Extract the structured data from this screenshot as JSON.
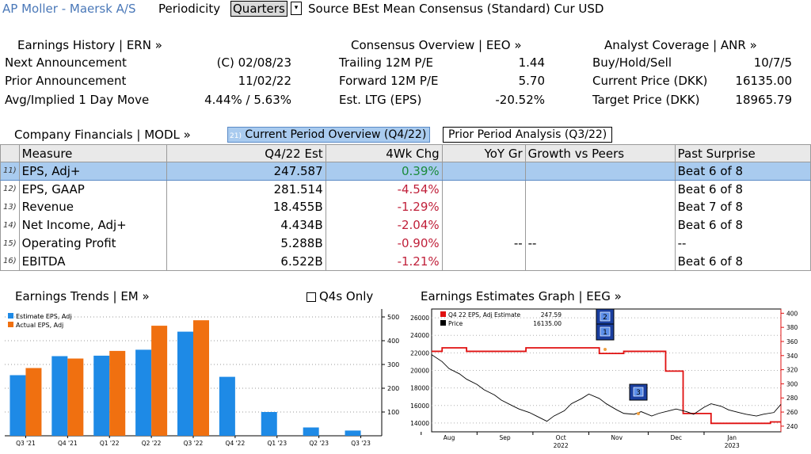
{
  "header": {
    "company": "AP Moller - Maersk A/S",
    "periodicity_label": "Periodicity",
    "periodicity_value": "Quarters",
    "dropdown_arrow": "▾",
    "source_text": "Source BEst Mean Consensus (Standard) Cur USD"
  },
  "earnings_history": {
    "title": "Earnings History | ERN »",
    "rows": [
      {
        "label": "Next Announcement",
        "value": "(C)  02/08/23"
      },
      {
        "label": "Prior Announcement",
        "value": "11/02/22"
      },
      {
        "label": "Avg/Implied 1 Day Move",
        "value": "4.44% / 5.63%"
      }
    ]
  },
  "consensus": {
    "title": "Consensus Overview | EEO »",
    "rows": [
      {
        "label": "Trailing 12M P/E",
        "value": "1.44"
      },
      {
        "label": "Forward 12M P/E",
        "value": "5.70"
      },
      {
        "label": "Est. LTG (EPS)",
        "value": "-20.52%"
      }
    ]
  },
  "analyst": {
    "title": "Analyst Coverage | ANR »",
    "rows": [
      {
        "label": "Buy/Hold/Sell",
        "value": "10/7/5"
      },
      {
        "label": "Current Price (DKK)",
        "value": "16135.00"
      },
      {
        "label": "Target Price (DKK)",
        "value": "18965.79"
      }
    ]
  },
  "financials": {
    "title": "Company Financials | MODL »",
    "tab_active_num": "21)",
    "tab_active": "Current Period Overview (Q4/22)",
    "tab_inactive": "Prior Period Analysis (Q3/22)",
    "columns": [
      "Measure",
      "Q4/22 Est",
      "4Wk Chg",
      "YoY Gr",
      "Growth vs Peers",
      "Past Surprise"
    ],
    "rows": [
      {
        "num": "11)",
        "measure": "EPS, Adj+",
        "est": "247.587",
        "chg": "0.39%",
        "yoy": "",
        "peers": "",
        "surprise": "Beat 6 of 8"
      },
      {
        "num": "12)",
        "measure": "EPS, GAAP",
        "est": "281.514",
        "chg": "-4.54%",
        "yoy": "",
        "peers": "",
        "surprise": "Beat 6 of 8"
      },
      {
        "num": "13)",
        "measure": "Revenue",
        "est": "18.455B",
        "chg": "-1.29%",
        "yoy": "",
        "peers": "",
        "surprise": "Beat 7 of 8"
      },
      {
        "num": "14)",
        "measure": "Net Income, Adj+",
        "est": "4.434B",
        "chg": "-2.04%",
        "yoy": "",
        "peers": "",
        "surprise": "Beat 6 of 8"
      },
      {
        "num": "15)",
        "measure": "Operating Profit",
        "est": "5.288B",
        "chg": "-0.90%",
        "yoy": "--",
        "peers": "--",
        "surprise": "--"
      },
      {
        "num": "16)",
        "measure": "EBITDA",
        "est": "6.522B",
        "chg": "-1.21%",
        "yoy": "",
        "peers": "",
        "surprise": "Beat 6 of 8"
      }
    ]
  },
  "trends": {
    "title": "Earnings Trends | EM »",
    "q4s_only_label": "Q4s Only"
  },
  "estimates_graph": {
    "title": "Earnings Estimates Graph | EEG »"
  },
  "chart_data": [
    {
      "type": "bar",
      "categories": [
        "Q3 '21",
        "Q4 '21",
        "Q1 '22",
        "Q2 '22",
        "Q3 '22",
        "Q4 '22",
        "Q1 '23",
        "Q2 '23",
        "Q3 '23"
      ],
      "series": [
        {
          "name": "Estimate EPS, Adj",
          "color": "#1e8ae6",
          "values": [
            255,
            335,
            337,
            362,
            438,
            248,
            100,
            35,
            22
          ]
        },
        {
          "name": "Actual EPS, Adj",
          "color": "#f07010",
          "values": [
            285,
            325,
            357,
            463,
            486,
            null,
            null,
            null,
            null
          ]
        }
      ],
      "ylim": [
        0,
        520
      ],
      "yticks": [
        100,
        200,
        300,
        400,
        500
      ],
      "grid": true,
      "legend": "top-left"
    },
    {
      "type": "line",
      "x_labels": [
        "Aug",
        "Sep",
        "Oct",
        "Nov",
        "Dec",
        "Jan"
      ],
      "x_year_labels": [
        "2022",
        "2023"
      ],
      "left_axis_ticks": [
        14000,
        16000,
        18000,
        20000,
        22000,
        24000,
        26000
      ],
      "right_axis_ticks": [
        240,
        260,
        280,
        300,
        320,
        340,
        360,
        380,
        400
      ],
      "legend": [
        {
          "name": "Q4 22 EPS, Adj Estimate",
          "value": "247.59",
          "color": "#e01010"
        },
        {
          "name": "Price",
          "value": "16135.00",
          "color": "#000000"
        }
      ],
      "markers": [
        "2",
        "1",
        "3"
      ],
      "series": [
        {
          "name": "Q4 22 EPS, Adj Estimate",
          "axis": "right",
          "x": [
            0,
            3,
            3,
            10,
            10,
            27,
            27,
            48,
            48,
            55,
            55,
            67,
            67,
            72,
            72,
            80,
            80,
            97,
            97,
            100
          ],
          "y": [
            346,
            346,
            351,
            351,
            346,
            346,
            351,
            351,
            343,
            343,
            346,
            346,
            318,
            318,
            258,
            258,
            244,
            244,
            246,
            246
          ]
        },
        {
          "name": "Price",
          "axis": "left",
          "x": [
            0,
            3,
            5,
            8,
            10,
            13,
            15,
            18,
            20,
            23,
            25,
            28,
            30,
            33,
            35,
            38,
            40,
            43,
            45,
            48,
            50,
            53,
            55,
            58,
            60,
            63,
            65,
            68,
            70,
            73,
            75,
            78,
            80,
            83,
            85,
            88,
            90,
            93,
            95,
            98,
            100
          ],
          "y": [
            21800,
            21000,
            20200,
            19600,
            19000,
            18400,
            17800,
            17200,
            16600,
            16000,
            15600,
            15200,
            14800,
            14200,
            14800,
            15400,
            16200,
            16800,
            17300,
            16800,
            16200,
            15500,
            15100,
            15000,
            15300,
            14800,
            15100,
            15400,
            15600,
            15300,
            15000,
            15800,
            16200,
            15900,
            15500,
            15200,
            15000,
            14800,
            15000,
            15200,
            16135
          ]
        }
      ]
    }
  ]
}
